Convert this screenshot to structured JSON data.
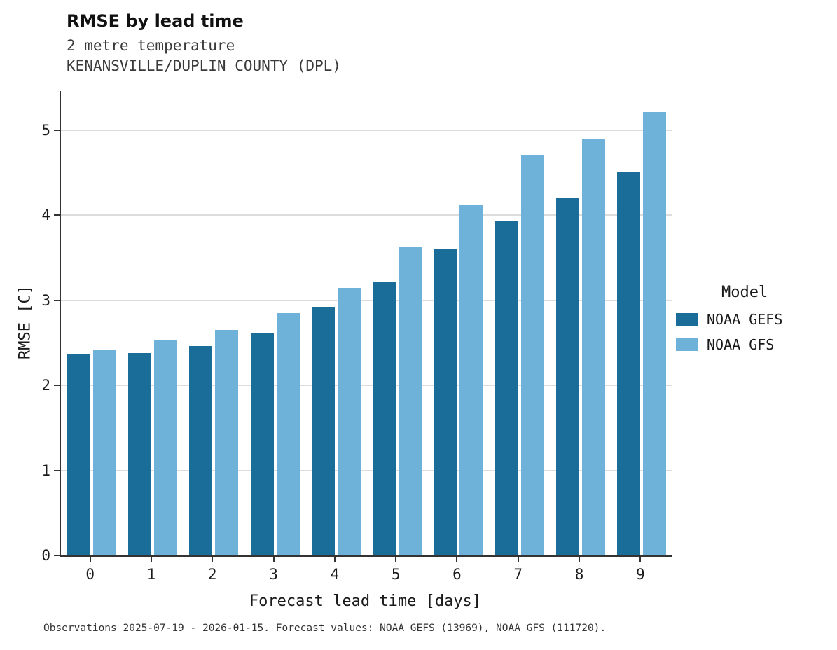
{
  "title": "RMSE by lead time",
  "subtitle1": "2 metre temperature",
  "subtitle2": "KENANSVILLE/DUPLIN_COUNTY (DPL)",
  "caption": "Observations 2025-07-19 - 2026-01-15. Forecast values: NOAA GEFS (13969), NOAA GFS (111720).",
  "legend": {
    "title": "Model",
    "entries": [
      {
        "label": "NOAA GEFS",
        "color": "#1b6d99"
      },
      {
        "label": "NOAA GFS",
        "color": "#6fb2d9"
      }
    ]
  },
  "chart_data": {
    "type": "bar",
    "title": "RMSE by lead time",
    "xlabel": "Forecast lead time [days]",
    "ylabel": "RMSE [C]",
    "categories": [
      "0",
      "1",
      "2",
      "3",
      "4",
      "5",
      "6",
      "7",
      "8",
      "9"
    ],
    "series": [
      {
        "name": "NOAA GEFS",
        "color": "#1b6d99",
        "values": [
          2.36,
          2.38,
          2.46,
          2.62,
          2.92,
          3.21,
          3.6,
          3.93,
          4.2,
          4.51
        ]
      },
      {
        "name": "NOAA GFS",
        "color": "#6fb2d9",
        "values": [
          2.41,
          2.53,
          2.65,
          2.85,
          3.15,
          3.63,
          4.12,
          4.7,
          4.89,
          5.21
        ]
      }
    ],
    "ylim": [
      0,
      5.46
    ],
    "yticks": [
      0,
      1,
      2,
      3,
      4,
      5
    ],
    "grid": true,
    "legend_position": "right"
  }
}
